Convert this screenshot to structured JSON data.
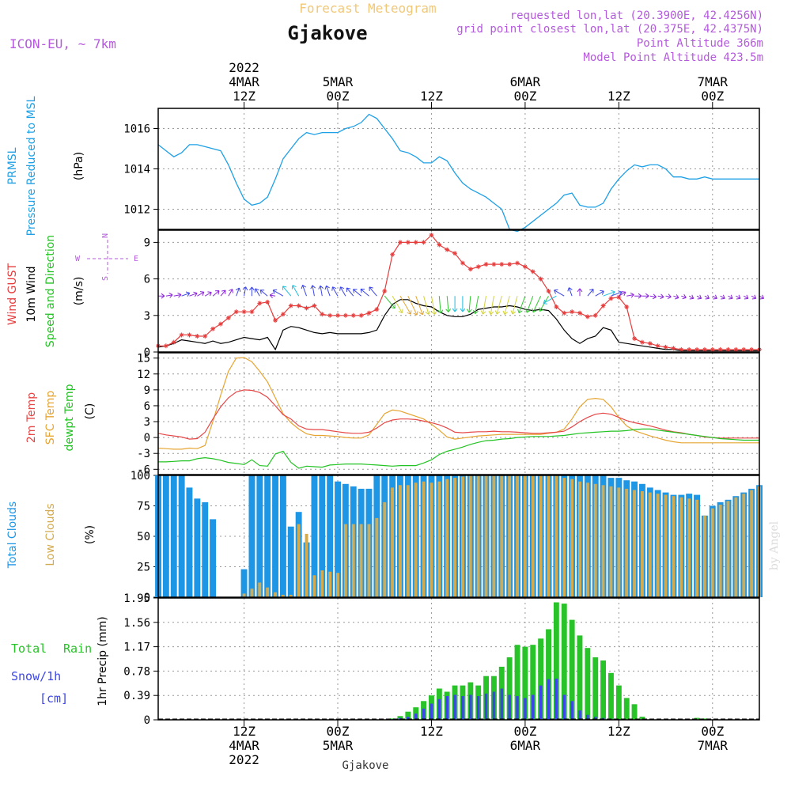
{
  "header": {
    "subtitle": "Forecast Meteogram",
    "location": "Gjakove",
    "model": "ICON-EU, ~ 7km",
    "requested": "requested lon,lat (20.3900E, 42.4256N)",
    "grid_point": "grid point closest lon,lat (20.375E, 42.4375N)",
    "point_altitude": "Point Altitude 366m",
    "model_altitude": "Model Point Altitude 423.5m",
    "credit": "by Angel",
    "footer_location": "Gjakove"
  },
  "time_axis": {
    "start_hour": 0,
    "end_hour": 77,
    "ticks": [
      {
        "hour": 11,
        "top": [
          "2022",
          "4MAR",
          "12Z"
        ],
        "bottom": [
          "12Z",
          "4MAR",
          "2022"
        ]
      },
      {
        "hour": 23,
        "top": [
          "5MAR",
          "00Z"
        ],
        "bottom": [
          "00Z",
          "5MAR"
        ]
      },
      {
        "hour": 35,
        "top": [
          "12Z"
        ],
        "bottom": [
          "12Z"
        ]
      },
      {
        "hour": 47,
        "top": [
          "6MAR",
          "00Z"
        ],
        "bottom": [
          "00Z",
          "6MAR"
        ]
      },
      {
        "hour": 59,
        "top": [
          "12Z"
        ],
        "bottom": [
          "12Z"
        ]
      },
      {
        "hour": 71,
        "top": [
          "7MAR",
          "00Z"
        ],
        "bottom": [
          "00Z",
          "7MAR"
        ]
      }
    ]
  },
  "panels": {
    "pressure": {
      "labels": [
        "PRMSL",
        "Pressure Reduced to MSL"
      ],
      "unit": "(hPa)",
      "ticks": [
        "1012",
        "1014",
        "1016"
      ]
    },
    "wind": {
      "labels": [
        "Wind GUST",
        "10m Wind",
        "Speed and Direction"
      ],
      "unit": "(m/s)",
      "ticks": [
        "0",
        "3",
        "6",
        "9"
      ],
      "compass": {
        "n": "N",
        "s": "S",
        "w": "W",
        "e": "E"
      }
    },
    "temp": {
      "labels": [
        "2m Temp",
        "SFC Temp",
        "dewpt Temp"
      ],
      "unit": "(C)",
      "ticks": [
        "-6",
        "-3",
        "0",
        "3",
        "6",
        "9",
        "12",
        "15"
      ]
    },
    "clouds": {
      "labels": [
        "Total Clouds",
        "Low Clouds"
      ],
      "unit": "(%)",
      "ticks": [
        "0",
        "25",
        "50",
        "75",
        "100"
      ]
    },
    "precip": {
      "labels": [
        "Total",
        "Rain",
        "Snow/1h",
        "[cm]"
      ],
      "unit": "1hr Precip (mm)",
      "ticks": [
        "0",
        "0.39",
        "0.78",
        "1.17",
        "1.56",
        "1.95"
      ]
    }
  },
  "colors": {
    "pressure": "#1ea0e6",
    "gust": "#e63c3c",
    "wind": "#000000",
    "t2m": "#e64646",
    "sfc": "#e6a532",
    "dewpt": "#23c323",
    "total_clouds": "#1e96e6",
    "low_clouds": "#d2aa50",
    "rain": "#28c328",
    "snow": "#3c46e6",
    "title": "#f0c878",
    "info": "#b45adc"
  },
  "chart_data": [
    {
      "type": "line",
      "name_ref": "pressure",
      "x": [
        0,
        1,
        2,
        3,
        4,
        5,
        6,
        7,
        8,
        9,
        10,
        11,
        12,
        13,
        14,
        15,
        16,
        17,
        18,
        19,
        20,
        21,
        22,
        23,
        24,
        25,
        26,
        27,
        28,
        29,
        30,
        31,
        32,
        33,
        34,
        35,
        36,
        37,
        38,
        39,
        40,
        41,
        42,
        43,
        44,
        45,
        46,
        47,
        48,
        49,
        50,
        51,
        52,
        53,
        54,
        55,
        56,
        57,
        58,
        59,
        60,
        61,
        62,
        63,
        64,
        65,
        66,
        67,
        68,
        69,
        70,
        71,
        72,
        73,
        74,
        75,
        76,
        77
      ],
      "y": [
        1015.2,
        1014.9,
        1014.6,
        1014.8,
        1015.2,
        1015.2,
        1015.1,
        1015.0,
        1014.9,
        1014.2,
        1013.3,
        1012.5,
        1012.2,
        1012.3,
        1012.6,
        1013.5,
        1014.5,
        1015.0,
        1015.5,
        1015.8,
        1015.7,
        1015.8,
        1015.8,
        1015.8,
        1016.0,
        1016.1,
        1016.3,
        1016.7,
        1016.5,
        1016.0,
        1015.5,
        1014.9,
        1014.8,
        1014.6,
        1014.3,
        1014.3,
        1014.6,
        1014.4,
        1013.8,
        1013.3,
        1013.0,
        1012.8,
        1012.6,
        1012.3,
        1012.0,
        1011.0,
        1010.9,
        1011.1,
        1011.4,
        1011.7,
        1012.0,
        1012.3,
        1012.7,
        1012.8,
        1012.2,
        1012.1,
        1012.1,
        1012.3,
        1013.0,
        1013.5,
        1013.9,
        1014.2,
        1014.1,
        1014.2,
        1014.2,
        1014.0,
        1013.6,
        1013.6,
        1013.5,
        1013.5,
        1013.6,
        1013.5,
        1013.5,
        1013.5,
        1013.5,
        1013.5,
        1013.5,
        1013.5
      ],
      "ylim": [
        1011,
        1017
      ]
    },
    {
      "type": "line",
      "name_ref": "wind",
      "x": [
        0,
        1,
        2,
        3,
        4,
        5,
        6,
        7,
        8,
        9,
        10,
        11,
        12,
        13,
        14,
        15,
        16,
        17,
        18,
        19,
        20,
        21,
        22,
        23,
        24,
        25,
        26,
        27,
        28,
        29,
        30,
        31,
        32,
        33,
        34,
        35,
        36,
        37,
        38,
        39,
        40,
        41,
        42,
        43,
        44,
        45,
        46,
        47,
        48,
        49,
        50,
        51,
        52,
        53,
        54,
        55,
        56,
        57,
        58,
        59,
        60,
        61,
        62,
        63,
        64,
        65,
        66,
        67,
        68,
        69,
        70,
        71,
        72,
        73,
        74,
        75,
        76,
        77
      ],
      "gust": [
        0.5,
        0.5,
        0.8,
        1.4,
        1.4,
        1.3,
        1.3,
        1.9,
        2.3,
        2.8,
        3.3,
        3.3,
        3.3,
        4.0,
        4.1,
        2.6,
        3.1,
        3.8,
        3.8,
        3.6,
        3.8,
        3.1,
        3.0,
        3.0,
        3.0,
        3.0,
        3.0,
        3.2,
        3.5,
        5.0,
        8.0,
        9.0,
        9.0,
        9.0,
        9.0,
        9.6,
        8.8,
        8.4,
        8.1,
        7.3,
        6.8,
        7.0,
        7.2,
        7.2,
        7.2,
        7.2,
        7.3,
        7.0,
        6.6,
        6.0,
        5.0,
        3.7,
        3.2,
        3.3,
        3.2,
        2.9,
        3.0,
        3.8,
        4.4,
        4.5,
        3.7,
        1.1,
        0.8,
        0.7,
        0.5,
        0.4,
        0.3,
        0.2,
        0.2,
        0.2,
        0.2,
        0.2,
        0.2,
        0.2,
        0.2,
        0.2,
        0.2,
        0.2
      ],
      "speed": [
        0.4,
        0.5,
        0.7,
        1.0,
        0.9,
        0.8,
        0.7,
        0.9,
        0.7,
        0.8,
        1.0,
        1.2,
        1.1,
        1.0,
        1.2,
        0.2,
        1.8,
        2.1,
        2.0,
        1.8,
        1.6,
        1.5,
        1.6,
        1.5,
        1.5,
        1.5,
        1.5,
        1.6,
        1.8,
        3.0,
        3.9,
        4.3,
        4.3,
        4.0,
        3.8,
        3.7,
        3.3,
        3.0,
        2.9,
        2.9,
        3.1,
        3.5,
        3.6,
        3.7,
        3.7,
        3.8,
        3.7,
        3.5,
        3.4,
        3.5,
        3.4,
        2.7,
        1.8,
        1.1,
        0.7,
        1.1,
        1.3,
        2.0,
        1.8,
        0.8,
        0.7,
        0.6,
        0.5,
        0.4,
        0.3,
        0.2,
        0.2,
        0.1,
        0.1,
        0.1,
        0.1,
        0.1,
        0.1,
        0.1,
        0.1,
        0.1,
        0.1,
        0.1
      ],
      "direction": [
        270,
        260,
        260,
        250,
        250,
        240,
        240,
        230,
        220,
        210,
        200,
        190,
        180,
        150,
        130,
        100,
        120,
        140,
        150,
        160,
        170,
        170,
        160,
        150,
        150,
        140,
        130,
        130,
        140,
        320,
        330,
        330,
        335,
        340,
        345,
        350,
        355,
        355,
        0,
        0,
        5,
        10,
        10,
        10,
        15,
        15,
        15,
        20,
        20,
        25,
        30,
        60,
        120,
        160,
        180,
        220,
        240,
        250,
        250,
        240,
        260,
        270,
        270,
        280,
        280,
        280,
        290,
        290,
        300,
        300,
        300,
        300,
        300,
        300,
        300,
        300,
        300,
        300
      ],
      "ylim": [
        0,
        10
      ]
    },
    {
      "type": "line",
      "name_ref": "temp",
      "x": [
        0,
        1,
        2,
        3,
        4,
        5,
        6,
        7,
        8,
        9,
        10,
        11,
        12,
        13,
        14,
        15,
        16,
        17,
        18,
        19,
        20,
        21,
        22,
        23,
        24,
        25,
        26,
        27,
        28,
        29,
        30,
        31,
        32,
        33,
        34,
        35,
        36,
        37,
        38,
        39,
        40,
        41,
        42,
        43,
        44,
        45,
        46,
        47,
        48,
        49,
        50,
        51,
        52,
        53,
        54,
        55,
        56,
        57,
        58,
        59,
        60,
        61,
        62,
        63,
        64,
        65,
        66,
        67,
        68,
        69,
        70,
        71,
        72,
        73,
        74,
        75,
        76,
        77
      ],
      "t2m": [
        0.8,
        0.5,
        0.3,
        0.1,
        -0.3,
        -0.2,
        1.0,
        3.5,
        5.8,
        7.5,
        8.6,
        9.0,
        8.9,
        8.5,
        7.6,
        6.0,
        4.3,
        3.5,
        2.2,
        1.6,
        1.5,
        1.5,
        1.3,
        1.1,
        0.9,
        0.8,
        0.8,
        1.0,
        1.8,
        2.8,
        3.3,
        3.5,
        3.5,
        3.4,
        3.1,
        2.8,
        2.4,
        1.8,
        1.0,
        0.9,
        1.0,
        1.1,
        1.1,
        1.2,
        1.1,
        1.1,
        1.0,
        0.9,
        0.8,
        0.8,
        0.9,
        1.0,
        1.2,
        2.0,
        3.0,
        3.8,
        4.4,
        4.6,
        4.4,
        3.8,
        3.2,
        2.8,
        2.5,
        2.2,
        1.8,
        1.4,
        1.1,
        0.9,
        0.6,
        0.4,
        0.1,
        0.0,
        -0.1,
        -0.1,
        -0.1,
        -0.1,
        -0.1,
        -0.1
      ],
      "sfc": [
        -2.0,
        -2.1,
        -2.2,
        -2.2,
        -2.0,
        -2.1,
        -1.5,
        3.0,
        8.0,
        12.5,
        15.0,
        15.1,
        14.3,
        12.5,
        10.5,
        7.5,
        4.5,
        2.8,
        1.6,
        0.7,
        0.4,
        0.4,
        0.3,
        0.2,
        0.0,
        -0.1,
        -0.1,
        0.5,
        2.5,
        4.5,
        5.2,
        5.0,
        4.5,
        4.0,
        3.5,
        2.5,
        1.4,
        0.1,
        -0.3,
        -0.1,
        0.1,
        0.3,
        0.4,
        0.5,
        0.6,
        0.6,
        0.6,
        0.6,
        0.6,
        0.6,
        0.8,
        1.0,
        1.6,
        3.5,
        5.8,
        7.2,
        7.4,
        7.2,
        5.8,
        3.8,
        2.2,
        1.3,
        0.8,
        0.3,
        -0.1,
        -0.5,
        -0.8,
        -1.0,
        -1.0,
        -1.0,
        -1.0,
        -1.0,
        -1.0,
        -1.0,
        -1.0,
        -1.0,
        -1.0,
        -1.0
      ],
      "dewpt": [
        -4.6,
        -4.6,
        -4.5,
        -4.4,
        -4.4,
        -4.0,
        -3.8,
        -4.0,
        -4.3,
        -4.7,
        -4.9,
        -5.1,
        -4.2,
        -5.3,
        -5.4,
        -3.1,
        -2.6,
        -4.7,
        -5.8,
        -5.4,
        -5.5,
        -5.6,
        -5.2,
        -5.1,
        -5.0,
        -5.0,
        -5.0,
        -5.1,
        -5.2,
        -5.3,
        -5.4,
        -5.3,
        -5.3,
        -5.3,
        -4.8,
        -4.2,
        -3.2,
        -2.6,
        -2.2,
        -1.8,
        -1.3,
        -0.9,
        -0.6,
        -0.5,
        -0.3,
        -0.2,
        0.0,
        0.1,
        0.2,
        0.2,
        0.2,
        0.3,
        0.4,
        0.6,
        0.8,
        0.9,
        1.0,
        1.1,
        1.2,
        1.2,
        1.3,
        1.5,
        1.6,
        1.6,
        1.4,
        1.2,
        1.0,
        0.8,
        0.6,
        0.4,
        0.2,
        0.0,
        -0.2,
        -0.3,
        -0.4,
        -0.5,
        -0.5,
        -0.5
      ],
      "ylim": [
        -7,
        16
      ]
    },
    {
      "type": "bar",
      "name_ref": "clouds",
      "x": [
        0,
        1,
        2,
        3,
        4,
        5,
        6,
        7,
        8,
        9,
        10,
        11,
        12,
        13,
        14,
        15,
        16,
        17,
        18,
        19,
        20,
        21,
        22,
        23,
        24,
        25,
        26,
        27,
        28,
        29,
        30,
        31,
        32,
        33,
        34,
        35,
        36,
        37,
        38,
        39,
        40,
        41,
        42,
        43,
        44,
        45,
        46,
        47,
        48,
        49,
        50,
        51,
        52,
        53,
        54,
        55,
        56,
        57,
        58,
        59,
        60,
        61,
        62,
        63,
        64,
        65,
        66,
        67,
        68,
        69,
        70,
        71,
        72,
        73,
        74,
        75,
        76,
        77
      ],
      "total": [
        100,
        100,
        100,
        100,
        90,
        81,
        78,
        64,
        0,
        0,
        0,
        23,
        100,
        100,
        100,
        100,
        100,
        58,
        70,
        45,
        100,
        100,
        100,
        95,
        93,
        91,
        89,
        89,
        100,
        100,
        100,
        100,
        100,
        100,
        100,
        100,
        100,
        100,
        100,
        100,
        100,
        100,
        100,
        100,
        100,
        100,
        100,
        100,
        100,
        100,
        100,
        100,
        100,
        100,
        100,
        100,
        100,
        100,
        98,
        98,
        96,
        95,
        93,
        90,
        88,
        86,
        84,
        84,
        85,
        84,
        67,
        75,
        78,
        80,
        83,
        86,
        89,
        92
      ],
      "low": [
        0,
        0,
        0,
        0,
        0,
        0,
        0,
        0,
        0,
        0,
        0,
        3,
        7,
        12,
        8,
        4,
        2,
        2,
        60,
        52,
        18,
        22,
        21,
        20,
        60,
        60,
        60,
        60,
        65,
        78,
        90,
        92,
        92,
        94,
        95,
        94,
        95,
        97,
        98,
        99,
        100,
        100,
        100,
        100,
        100,
        100,
        100,
        100,
        100,
        100,
        100,
        100,
        98,
        97,
        95,
        94,
        93,
        92,
        91,
        90,
        89,
        88,
        87,
        86,
        85,
        84,
        83,
        82,
        81,
        80,
        67,
        73,
        76,
        79,
        82,
        85,
        88,
        91
      ],
      "ylim": [
        0,
        100
      ]
    },
    {
      "type": "bar",
      "name_ref": "precip",
      "x": [
        0,
        1,
        2,
        3,
        4,
        5,
        6,
        7,
        8,
        9,
        10,
        11,
        12,
        13,
        14,
        15,
        16,
        17,
        18,
        19,
        20,
        21,
        22,
        23,
        24,
        25,
        26,
        27,
        28,
        29,
        30,
        31,
        32,
        33,
        34,
        35,
        36,
        37,
        38,
        39,
        40,
        41,
        42,
        43,
        44,
        45,
        46,
        47,
        48,
        49,
        50,
        51,
        52,
        53,
        54,
        55,
        56,
        57,
        58,
        59,
        60,
        61,
        62,
        63,
        64,
        65,
        66,
        67,
        68,
        69,
        70,
        71,
        72,
        73,
        74,
        75,
        76,
        77
      ],
      "total": [
        0,
        0,
        0,
        0,
        0,
        0,
        0,
        0,
        0,
        0,
        0,
        0,
        0,
        0,
        0,
        0,
        0,
        0,
        0,
        0,
        0,
        0,
        0,
        0,
        0,
        0,
        0,
        0,
        0,
        0,
        0.02,
        0.06,
        0.13,
        0.2,
        0.3,
        0.39,
        0.5,
        0.45,
        0.55,
        0.55,
        0.6,
        0.55,
        0.7,
        0.7,
        0.85,
        1.0,
        1.2,
        1.17,
        1.2,
        1.3,
        1.45,
        1.88,
        1.86,
        1.6,
        1.35,
        1.15,
        1.0,
        0.95,
        0.75,
        0.55,
        0.35,
        0.25,
        0.05,
        0,
        0,
        0,
        0,
        0,
        0,
        0.03,
        0.02,
        0,
        0,
        0,
        0,
        0,
        0,
        0
      ],
      "snow": [
        0,
        0,
        0,
        0,
        0,
        0,
        0,
        0,
        0,
        0,
        0,
        0,
        0,
        0,
        0,
        0,
        0,
        0,
        0,
        0,
        0,
        0,
        0,
        0,
        0,
        0,
        0,
        0,
        0,
        0,
        0.01,
        0.03,
        0.05,
        0.1,
        0.18,
        0.26,
        0.33,
        0.38,
        0.4,
        0.38,
        0.4,
        0.38,
        0.42,
        0.45,
        0.5,
        0.4,
        0.38,
        0.35,
        0.4,
        0.55,
        0.65,
        0.66,
        0.4,
        0.3,
        0.15,
        0.08,
        0.05,
        0.03,
        0.02,
        0.01,
        0,
        0,
        0,
        0,
        0,
        0,
        0,
        0,
        0,
        0,
        0,
        0,
        0,
        0,
        0,
        0,
        0,
        0
      ],
      "ylim": [
        0,
        1.95
      ]
    }
  ]
}
